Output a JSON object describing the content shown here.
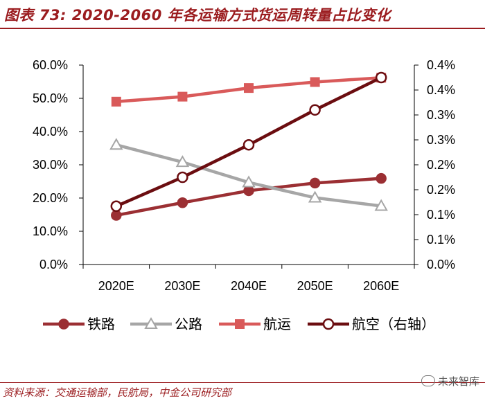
{
  "header": {
    "title": "图表 73: 2020-2060 年各运输方式货运周转量占比变化"
  },
  "footer": {
    "source": "资料来源：交通运输部，民航局，中金公司研究部",
    "watermark": "未来智库"
  },
  "colors": {
    "brand": "#9b1c1f",
    "railway": "#9b2f33",
    "road": "#a6a6a6",
    "shipping": "#d95a5a",
    "air": "#6b0d10"
  },
  "chart_data": {
    "type": "line",
    "title": "",
    "xlabel": "",
    "ylabel": "",
    "categories": [
      "2020E",
      "2030E",
      "2040E",
      "2050E",
      "2060E"
    ],
    "ylim_left": [
      0,
      60
    ],
    "yticks_left": [
      "0.0%",
      "10.0%",
      "20.0%",
      "30.0%",
      "40.0%",
      "50.0%",
      "60.0%"
    ],
    "ylim_right": [
      0,
      0.4
    ],
    "yticks_right": [
      "0.0%",
      "0.1%",
      "0.1%",
      "0.2%",
      "0.2%",
      "0.3%",
      "0.3%",
      "0.4%",
      "0.4%"
    ],
    "legend_position": "bottom",
    "series": [
      {
        "name": "铁路",
        "axis": "left",
        "marker": "circle-filled",
        "values": [
          14.8,
          18.6,
          22.2,
          24.5,
          25.9
        ]
      },
      {
        "name": "公路",
        "axis": "left",
        "marker": "triangle-open",
        "values": [
          36.0,
          30.8,
          24.7,
          20.1,
          17.6
        ]
      },
      {
        "name": "航运",
        "axis": "left",
        "marker": "square-filled",
        "values": [
          49.0,
          50.5,
          53.1,
          54.9,
          56.2
        ]
      },
      {
        "name": "航空（右轴）",
        "axis": "right",
        "marker": "circle-open",
        "values": [
          0.117,
          0.175,
          0.24,
          0.31,
          0.375
        ]
      }
    ]
  }
}
